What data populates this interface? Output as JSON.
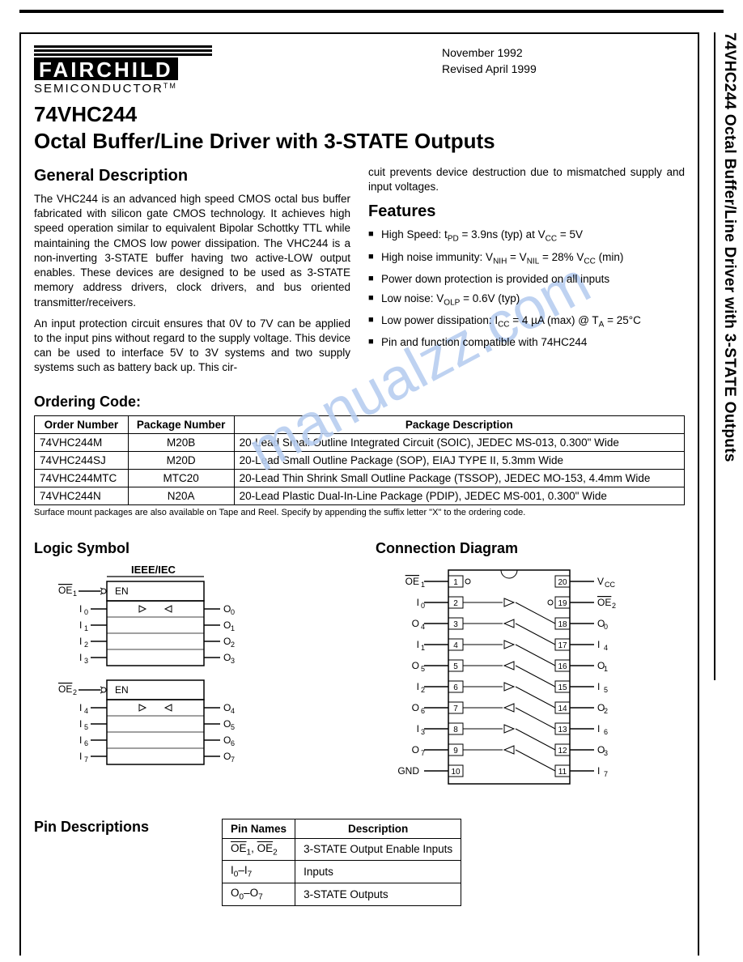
{
  "side_title": "74VHC244 Octal Buffer/Line Driver with 3-STATE Outputs",
  "logo": {
    "name": "FAIRCHILD",
    "sub": "SEMICONDUCTOR",
    "tm": "TM"
  },
  "dates": {
    "line1": "November 1992",
    "line2": "Revised April 1999"
  },
  "part_number": "74VHC244",
  "title": "Octal Buffer/Line Driver with 3-STATE Outputs",
  "gen_desc_h": "General Description",
  "gen_desc_p1": "The VHC244 is an advanced high speed CMOS octal bus buffer fabricated with silicon gate CMOS technology. It achieves high speed operation similar to equivalent Bipolar Schottky TTL while maintaining the CMOS low power dissipation. The VHC244 is a non-inverting 3-STATE buffer having two active-LOW output enables. These devices are designed to be used as 3-STATE memory address drivers, clock drivers, and bus oriented transmitter/receivers.",
  "gen_desc_p2": "An input protection circuit ensures that 0V to 7V can be applied to the input pins without regard to the supply voltage. This device can be used to interface 5V to 3V systems and two supply systems such as battery back up. This cir-",
  "gen_desc_p3": "cuit prevents device destruction due to mismatched supply and input voltages.",
  "features_h": "Features",
  "features": [
    "High Speed: t<sub>PD</sub> = 3.9ns (typ) at V<sub>CC</sub> = 5V",
    "High noise immunity: V<sub>NIH</sub> = V<sub>NIL</sub> = 28% V<sub>CC</sub> (min)",
    "Power down protection is provided on all inputs",
    "Low noise: V<sub>OLP</sub> = 0.6V (typ)",
    "Low power dissipation: I<sub>CC</sub> = 4 µA (max) @ T<sub>A</sub> = 25°C",
    "Pin and function compatible with 74HC244"
  ],
  "ordering_h": "Ordering Code:",
  "order_headers": [
    "Order Number",
    "Package Number",
    "Package Description"
  ],
  "order_rows": [
    [
      "74VHC244M",
      "M20B",
      "20-Lead Small Outline Integrated Circuit (SOIC), JEDEC MS-013, 0.300\" Wide"
    ],
    [
      "74VHC244SJ",
      "M20D",
      "20-Lead Small Outline Package (SOP), EIAJ TYPE II, 5.3mm Wide"
    ],
    [
      "74VHC244MTC",
      "MTC20",
      "20-Lead Thin Shrink Small Outline Package (TSSOP), JEDEC MO-153, 4.4mm Wide"
    ],
    [
      "74VHC244N",
      "N20A",
      "20-Lead Plastic Dual-In-Line Package (PDIP), JEDEC MS-001, 0.300\" Wide"
    ]
  ],
  "order_note": "Surface mount packages are also available on Tape and Reel. Specify by appending the suffix letter \"X\" to the ordering code.",
  "logic_h": "Logic Symbol",
  "conn_h": "Connection Diagram",
  "pindesc_h": "Pin Descriptions",
  "pin_headers": [
    "Pin Names",
    "Description"
  ],
  "pin_rows": [
    [
      "<span class=\"ov\">OE</span><sub>1</sub>, <span class=\"ov\">OE</span><sub>2</sub>",
      "3-STATE Output Enable Inputs"
    ],
    [
      "I<sub>0</sub>–I<sub>7</sub>",
      "Inputs"
    ],
    [
      "O<sub>0</sub>–O<sub>7</sub>",
      "3-STATE Outputs"
    ]
  ],
  "ieee_label": "IEEE/IEC",
  "logic": {
    "block1": {
      "en": "OE₁",
      "en_lbl": "EN",
      "left": [
        "I₀",
        "I₁",
        "I₂",
        "I₃"
      ],
      "right": [
        "O₀",
        "O₁",
        "O₂",
        "O₃"
      ]
    },
    "block2": {
      "en": "OE₂",
      "en_lbl": "EN",
      "left": [
        "I₄",
        "I₅",
        "I₆",
        "I₇"
      ],
      "right": [
        "O₄",
        "O₅",
        "O₆",
        "O₇"
      ]
    }
  },
  "conn": {
    "left": [
      "OE₁",
      "I₀",
      "O₄",
      "I₁",
      "O₅",
      "I₂",
      "O₆",
      "I₃",
      "O₇",
      "GND"
    ],
    "right": [
      "V_CC",
      "OE₂",
      "O₀",
      "I₄",
      "O₁",
      "I₅",
      "O₂",
      "I₆",
      "O₃",
      "I₇"
    ],
    "left_nums": [
      1,
      2,
      3,
      4,
      5,
      6,
      7,
      8,
      9,
      10
    ],
    "right_nums": [
      20,
      19,
      18,
      17,
      16,
      15,
      14,
      13,
      12,
      11
    ]
  },
  "watermark": "manualzz.com",
  "colors": {
    "text": "#000000",
    "bg": "#ffffff",
    "wm": "#b8cef0"
  }
}
